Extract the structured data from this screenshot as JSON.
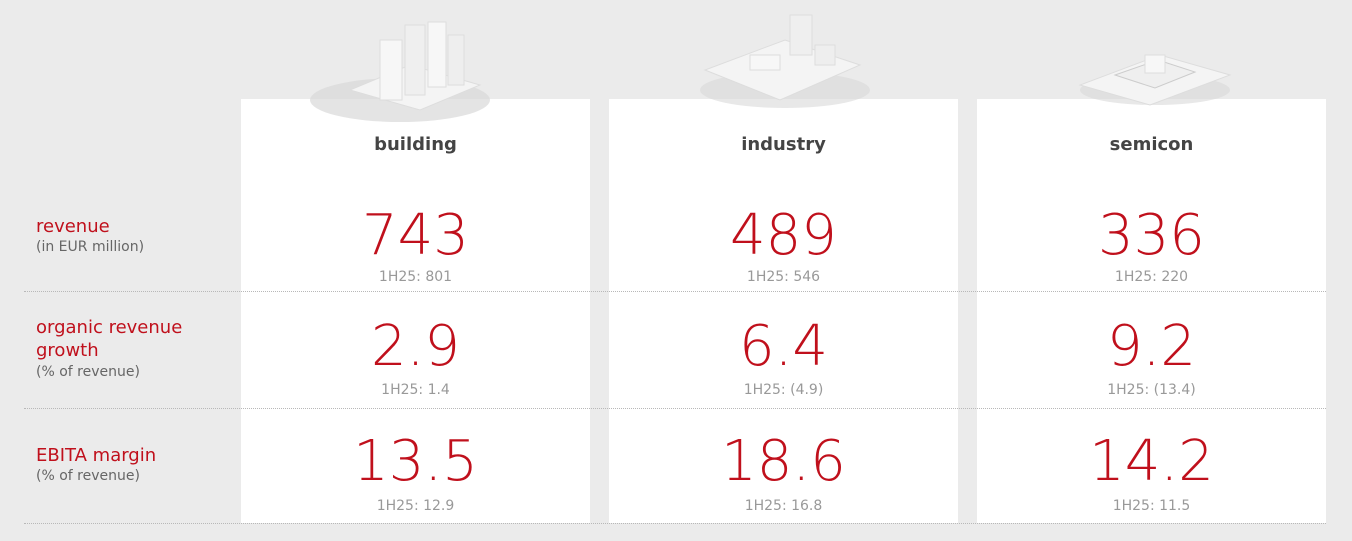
{
  "columns": [
    "building",
    "industry",
    "semicon"
  ],
  "rows": [
    {
      "label": "revenue",
      "sublabel": "(in EUR million)",
      "values": [
        743,
        489,
        336
      ],
      "prior": [
        "1H25: 801",
        "1H25: 546",
        "1H25: 220"
      ]
    },
    {
      "label": "organic revenue growth",
      "sublabel": "(% of revenue)",
      "values": [
        2.9,
        6.4,
        9.2
      ],
      "prior": [
        "1H25: 1.4",
        "1H25: (4.9)",
        "1H25: (13.4)"
      ]
    },
    {
      "label": "EBITA margin",
      "sublabel": "(% of revenue)",
      "values": [
        13.5,
        18.6,
        14.2
      ],
      "prior": [
        "1H25: 12.9",
        "1H25: 16.8",
        "1H25: 11.5"
      ]
    }
  ]
}
